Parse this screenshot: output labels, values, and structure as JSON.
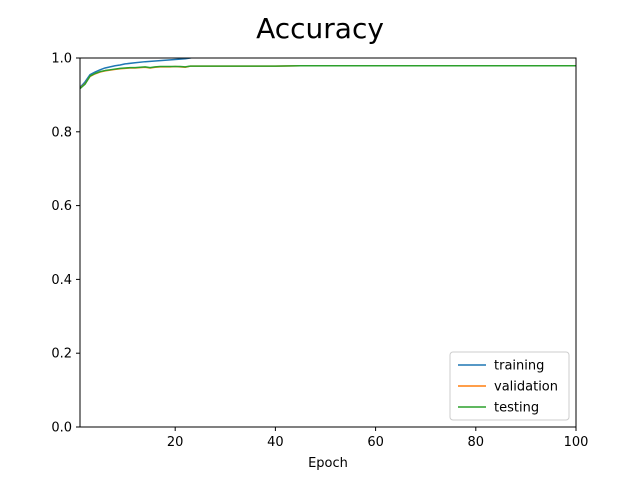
{
  "chart_data": {
    "type": "line",
    "title": "Accuracy",
    "xlabel": "Epoch",
    "ylabel": "",
    "xlim": [
      1,
      100
    ],
    "ylim": [
      0.0,
      1.0
    ],
    "grid": false,
    "legend_position": "lower-right",
    "x_ticks": [
      20,
      40,
      60,
      80,
      100
    ],
    "y_ticks": [
      0.0,
      0.2,
      0.4,
      0.6,
      0.8,
      1.0
    ],
    "x_tick_labels": [
      "20",
      "40",
      "60",
      "80",
      "100"
    ],
    "y_tick_labels": [
      "0.0",
      "0.2",
      "0.4",
      "0.6",
      "0.8",
      "1.0"
    ],
    "series": [
      {
        "name": "training",
        "color": "#1f77b4",
        "points": [
          [
            1,
            0.92
          ],
          [
            2,
            0.935
          ],
          [
            3,
            0.955
          ],
          [
            4,
            0.962
          ],
          [
            5,
            0.968
          ],
          [
            6,
            0.973
          ],
          [
            7,
            0.976
          ],
          [
            8,
            0.979
          ],
          [
            9,
            0.981
          ],
          [
            10,
            0.984
          ],
          [
            12,
            0.987
          ],
          [
            14,
            0.99
          ],
          [
            16,
            0.992
          ],
          [
            18,
            0.994
          ],
          [
            20,
            0.996
          ],
          [
            22,
            0.998
          ],
          [
            23,
            1.0
          ],
          [
            24,
            1.003
          ],
          [
            26,
            1.006
          ],
          [
            30,
            1.01
          ],
          [
            40,
            1.015
          ],
          [
            50,
            1.02
          ],
          [
            60,
            1.022
          ],
          [
            70,
            1.024
          ],
          [
            80,
            1.025
          ],
          [
            90,
            1.026
          ],
          [
            100,
            1.027
          ]
        ]
      },
      {
        "name": "validation",
        "color": "#ff7f0e",
        "points": [
          [
            1,
            0.918
          ],
          [
            2,
            0.93
          ],
          [
            3,
            0.95
          ],
          [
            4,
            0.957
          ],
          [
            5,
            0.962
          ],
          [
            6,
            0.965
          ],
          [
            7,
            0.967
          ],
          [
            8,
            0.969
          ],
          [
            9,
            0.971
          ],
          [
            10,
            0.972
          ],
          [
            11,
            0.973
          ],
          [
            12,
            0.973
          ],
          [
            13,
            0.974
          ],
          [
            14,
            0.975
          ],
          [
            15,
            0.973
          ],
          [
            16,
            0.975
          ],
          [
            17,
            0.976
          ],
          [
            18,
            0.976
          ],
          [
            19,
            0.976
          ],
          [
            20,
            0.977
          ],
          [
            21,
            0.976
          ],
          [
            22,
            0.975
          ],
          [
            23,
            0.978
          ],
          [
            24,
            0.978
          ],
          [
            25,
            0.978
          ],
          [
            30,
            0.978
          ],
          [
            35,
            0.978
          ],
          [
            40,
            0.978
          ],
          [
            45,
            0.979
          ],
          [
            50,
            0.979
          ],
          [
            60,
            0.979
          ],
          [
            70,
            0.979
          ],
          [
            80,
            0.979
          ],
          [
            90,
            0.979
          ],
          [
            100,
            0.979
          ]
        ]
      },
      {
        "name": "testing",
        "color": "#2ca02c",
        "points": [
          [
            1,
            0.917
          ],
          [
            2,
            0.929
          ],
          [
            3,
            0.951
          ],
          [
            4,
            0.958
          ],
          [
            5,
            0.963
          ],
          [
            6,
            0.966
          ],
          [
            7,
            0.968
          ],
          [
            8,
            0.97
          ],
          [
            9,
            0.972
          ],
          [
            10,
            0.973
          ],
          [
            11,
            0.974
          ],
          [
            12,
            0.974
          ],
          [
            13,
            0.975
          ],
          [
            14,
            0.976
          ],
          [
            15,
            0.974
          ],
          [
            16,
            0.976
          ],
          [
            17,
            0.977
          ],
          [
            18,
            0.977
          ],
          [
            19,
            0.977
          ],
          [
            20,
            0.977
          ],
          [
            21,
            0.977
          ],
          [
            22,
            0.976
          ],
          [
            23,
            0.978
          ],
          [
            24,
            0.978
          ],
          [
            25,
            0.978
          ],
          [
            30,
            0.978
          ],
          [
            35,
            0.978
          ],
          [
            40,
            0.978
          ],
          [
            45,
            0.979
          ],
          [
            50,
            0.979
          ],
          [
            60,
            0.979
          ],
          [
            70,
            0.979
          ],
          [
            80,
            0.979
          ],
          [
            90,
            0.979
          ],
          [
            100,
            0.979
          ]
        ]
      }
    ]
  }
}
